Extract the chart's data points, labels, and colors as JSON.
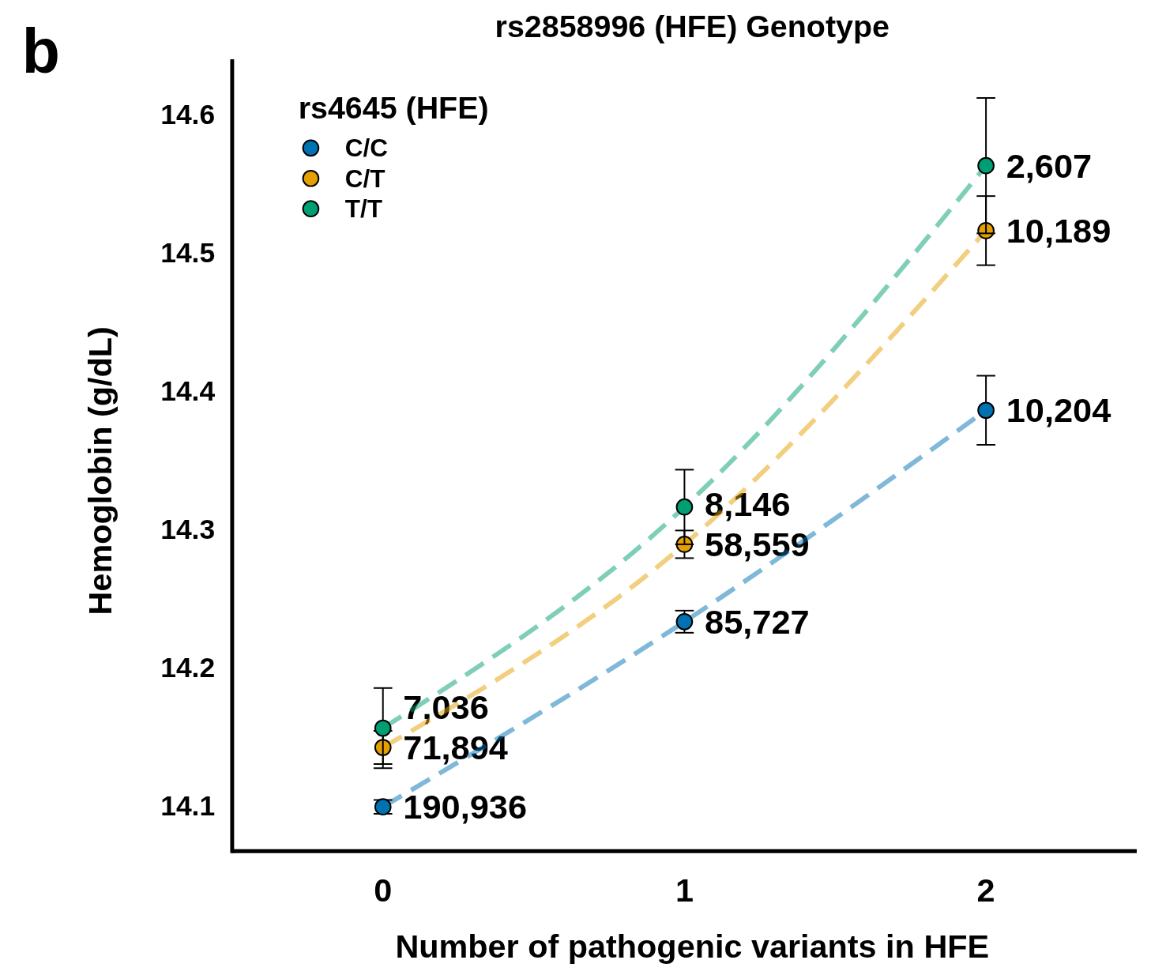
{
  "chart_data": {
    "type": "line",
    "title": "rs2858996 (HFE) Genotype",
    "xlabel": "Number of pathogenic variants in HFE",
    "ylabel": "Hemoglobin (g/dL)",
    "legend_title": "rs4645 (HFE)",
    "annotations": [
      "b",
      {
        "text": "190,936",
        "x": 0,
        "y": 14.099
      },
      {
        "text": "85,727",
        "x": 1,
        "y": 14.233
      },
      {
        "text": "10,204",
        "x": 2,
        "y": 14.386
      },
      {
        "text": "71,894",
        "x": 0,
        "y": 14.142
      },
      {
        "text": "58,559",
        "x": 1,
        "y": 14.289
      },
      {
        "text": "10,189",
        "x": 2,
        "y": 14.516
      },
      {
        "text": "7,036",
        "x": 0,
        "y": 14.156
      },
      {
        "text": "8,146",
        "x": 1,
        "y": 14.316
      },
      {
        "text": "2,607",
        "x": 2,
        "y": 14.563
      }
    ],
    "x": [
      0,
      1,
      2
    ],
    "xlim": [
      -0.5,
      2.5
    ],
    "xticks": [
      0,
      1,
      2
    ],
    "ylim": [
      14.067,
      14.64
    ],
    "yticks": [
      14.1,
      14.2,
      14.3,
      14.4,
      14.5,
      14.6
    ],
    "marker": "circle",
    "line_style": "dashed",
    "legend": "top left",
    "grid": false,
    "series": [
      {
        "name": "C/C",
        "color": "#0072b2",
        "values": [
          14.099,
          14.233,
          14.386
        ],
        "errors": [
          0.005,
          0.008,
          0.025
        ]
      },
      {
        "name": "C/T",
        "color": "#e69f00",
        "values": [
          14.142,
          14.289,
          14.516
        ],
        "errors": [
          0.012,
          0.01,
          0.025
        ]
      },
      {
        "name": "T/T",
        "color": "#009e73",
        "values": [
          14.156,
          14.316,
          14.563
        ],
        "errors": [
          0.029,
          0.027,
          0.049
        ]
      }
    ]
  }
}
